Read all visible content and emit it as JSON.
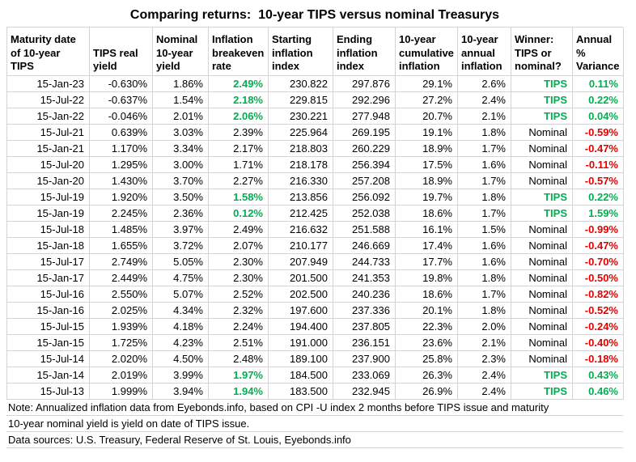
{
  "title": "Comparing returns:  10-year TIPS versus nominal Treasurys",
  "colors": {
    "green": "#00b050",
    "red": "#e60000",
    "grid": "#d4d4d4"
  },
  "table": {
    "headers": [
      "Maturity date\nof 10-year\nTIPS",
      "TIPS real\nyield",
      "Nominal\n10-year\nyield",
      "Inflation\nbreakeven\nrate",
      "Starting\ninflation\nindex",
      "Ending\ninflation\nindex",
      "10-year\ncumulative\ninflation",
      "10-year\nannual\ninflation",
      "Winner:\nTIPS or\nnominal?",
      "Annual %\nVariance"
    ],
    "field_names": [
      "maturity-date",
      "tips-real-yield",
      "nominal-yield",
      "breakeven-rate",
      "starting-index",
      "ending-index",
      "cumulative-inflation",
      "annual-inflation",
      "winner",
      "variance"
    ]
  },
  "chart_data": {
    "type": "table",
    "title": "Comparing returns: 10-year TIPS versus nominal Treasurys",
    "columns": [
      "Maturity date of 10-year TIPS",
      "TIPS real yield",
      "Nominal 10-year yield",
      "Inflation breakeven rate",
      "Starting inflation index",
      "Ending inflation index",
      "10-year cumulative inflation",
      "10-year annual inflation",
      "Winner: TIPS or nominal?",
      "Annual % Variance"
    ],
    "rows": [
      [
        "15-Jan-23",
        "-0.630%",
        "1.86%",
        "2.49%",
        "230.822",
        "297.876",
        "29.1%",
        "2.6%",
        "TIPS",
        "0.11%"
      ],
      [
        "15-Jul-22",
        "-0.637%",
        "1.54%",
        "2.18%",
        "229.815",
        "292.296",
        "27.2%",
        "2.4%",
        "TIPS",
        "0.22%"
      ],
      [
        "15-Jan-22",
        "-0.046%",
        "2.01%",
        "2.06%",
        "230.221",
        "277.948",
        "20.7%",
        "2.1%",
        "TIPS",
        "0.04%"
      ],
      [
        "15-Jul-21",
        "0.639%",
        "3.03%",
        "2.39%",
        "225.964",
        "269.195",
        "19.1%",
        "1.8%",
        "Nominal",
        "-0.59%"
      ],
      [
        "15-Jan-21",
        "1.170%",
        "3.34%",
        "2.17%",
        "218.803",
        "260.229",
        "18.9%",
        "1.7%",
        "Nominal",
        "-0.47%"
      ],
      [
        "15-Jul-20",
        "1.295%",
        "3.00%",
        "1.71%",
        "218.178",
        "256.394",
        "17.5%",
        "1.6%",
        "Nominal",
        "-0.11%"
      ],
      [
        "15-Jan-20",
        "1.430%",
        "3.70%",
        "2.27%",
        "216.330",
        "257.208",
        "18.9%",
        "1.7%",
        "Nominal",
        "-0.57%"
      ],
      [
        "15-Jul-19",
        "1.920%",
        "3.50%",
        "1.58%",
        "213.856",
        "256.092",
        "19.7%",
        "1.8%",
        "TIPS",
        "0.22%"
      ],
      [
        "15-Jan-19",
        "2.245%",
        "2.36%",
        "0.12%",
        "212.425",
        "252.038",
        "18.6%",
        "1.7%",
        "TIPS",
        "1.59%"
      ],
      [
        "15-Jul-18",
        "1.485%",
        "3.97%",
        "2.49%",
        "216.632",
        "251.588",
        "16.1%",
        "1.5%",
        "Nominal",
        "-0.99%"
      ],
      [
        "15-Jan-18",
        "1.655%",
        "3.72%",
        "2.07%",
        "210.177",
        "246.669",
        "17.4%",
        "1.6%",
        "Nominal",
        "-0.47%"
      ],
      [
        "15-Jul-17",
        "2.749%",
        "5.05%",
        "2.30%",
        "207.949",
        "244.733",
        "17.7%",
        "1.6%",
        "Nominal",
        "-0.70%"
      ],
      [
        "15-Jan-17",
        "2.449%",
        "4.75%",
        "2.30%",
        "201.500",
        "241.353",
        "19.8%",
        "1.8%",
        "Nominal",
        "-0.50%"
      ],
      [
        "15-Jul-16",
        "2.550%",
        "5.07%",
        "2.52%",
        "202.500",
        "240.236",
        "18.6%",
        "1.7%",
        "Nominal",
        "-0.82%"
      ],
      [
        "15-Jan-16",
        "2.025%",
        "4.34%",
        "2.32%",
        "197.600",
        "237.336",
        "20.1%",
        "1.8%",
        "Nominal",
        "-0.52%"
      ],
      [
        "15-Jul-15",
        "1.939%",
        "4.18%",
        "2.24%",
        "194.400",
        "237.805",
        "22.3%",
        "2.0%",
        "Nominal",
        "-0.24%"
      ],
      [
        "15-Jan-15",
        "1.725%",
        "4.23%",
        "2.51%",
        "191.000",
        "236.151",
        "23.6%",
        "2.1%",
        "Nominal",
        "-0.40%"
      ],
      [
        "15-Jul-14",
        "2.020%",
        "4.50%",
        "2.48%",
        "189.100",
        "237.900",
        "25.8%",
        "2.3%",
        "Nominal",
        "-0.18%"
      ],
      [
        "15-Jan-14",
        "2.019%",
        "3.99%",
        "1.97%",
        "184.500",
        "233.069",
        "26.3%",
        "2.4%",
        "TIPS",
        "0.43%"
      ],
      [
        "15-Jul-13",
        "1.999%",
        "3.94%",
        "1.94%",
        "183.500",
        "232.945",
        "26.9%",
        "2.4%",
        "TIPS",
        "0.46%"
      ]
    ],
    "notes": [
      "Note: Annualized inflation data from Eyebonds.info, based on CPI -U index 2 months before TIPS issue and maturity",
      "10-year nominal yield is yield on date of TIPS issue.",
      "Data sources: U.S. Treasury, Federal Reserve of St. Louis, Eyebonds.info"
    ]
  }
}
